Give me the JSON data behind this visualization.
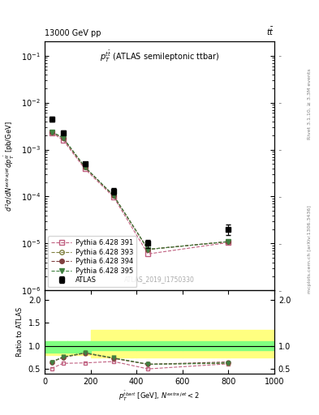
{
  "title_top": "13000 GeV pp",
  "title_right": "tt̅",
  "plot_title": "$p_T^{t\\bar{t}}$ (ATLAS semileptonic ttbar)",
  "watermark": "ATLAS_2019_I1750330",
  "rivet_label": "Rivet 3.1.10, ≥ 3.3M events",
  "arxiv_label": "mcplots.cern.ch [arXiv:1306.3436]",
  "xlabel": "$p_T^{\\bar{t}bar{t}}$ [GeV], $N^{extra jet} < 2$",
  "ylabel": "$d^2\\sigma / d N^{extra jet} d p_T^{t\\bar{t}}$ [pb/GeV]",
  "ratio_ylabel": "Ratio to ATLAS",
  "atlas_x": [
    30,
    80,
    175,
    300,
    450,
    800
  ],
  "atlas_y": [
    0.0045,
    0.0023,
    0.0005,
    0.00013,
    1e-05,
    2e-05
  ],
  "atlas_yerr": [
    0.0005,
    0.0002,
    5e-05,
    2e-05,
    2e-06,
    5e-06
  ],
  "py391_x": [
    30,
    80,
    175,
    300,
    450,
    800
  ],
  "py391_y": [
    0.0023,
    0.0016,
    0.00039,
    9.8e-05,
    6e-06,
    1.05e-05
  ],
  "py391_color": "#c06080",
  "py391_label": "Pythia 6.428 391",
  "py393_x": [
    30,
    80,
    175,
    300,
    450,
    800
  ],
  "py393_y": [
    0.0024,
    0.00175,
    0.00042,
    0.000105,
    7.5e-06,
    1.1e-05
  ],
  "py393_color": "#808040",
  "py393_label": "Pythia 6.428 393",
  "py394_x": [
    30,
    80,
    175,
    300,
    450,
    800
  ],
  "py394_y": [
    0.0024,
    0.00175,
    0.00042,
    0.000105,
    7.5e-06,
    1.1e-05
  ],
  "py394_color": "#804040",
  "py394_label": "Pythia 6.428 394",
  "py395_x": [
    30,
    80,
    175,
    300,
    450,
    800
  ],
  "py395_y": [
    0.0024,
    0.0018,
    0.00043,
    0.000105,
    7.5e-06,
    1.1e-05
  ],
  "py395_color": "#408040",
  "py395_label": "Pythia 6.428 395",
  "ratio_py391": [
    0.51,
    0.62,
    0.63,
    0.66,
    0.5,
    0.61
  ],
  "ratio_py393": [
    0.65,
    0.75,
    0.85,
    0.73,
    0.6,
    0.62
  ],
  "ratio_py394": [
    0.65,
    0.75,
    0.84,
    0.73,
    0.6,
    0.65
  ],
  "ratio_py395": [
    0.65,
    0.76,
    0.85,
    0.74,
    0.6,
    0.63
  ],
  "band_x_edges": [
    0,
    100,
    200,
    400,
    600,
    1000
  ],
  "band_green_lo": [
    0.85,
    0.85,
    0.9,
    0.9,
    0.9,
    0.9
  ],
  "band_green_hi": [
    1.1,
    1.1,
    1.1,
    1.1,
    1.1,
    1.1
  ],
  "band_yellow_lo": [
    0.8,
    0.8,
    0.75,
    0.75,
    0.75,
    0.75
  ],
  "band_yellow_hi": [
    1.1,
    1.1,
    1.35,
    1.35,
    1.35,
    1.35
  ],
  "ylim_main": [
    1e-06,
    0.2
  ],
  "ylim_ratio": [
    0.4,
    2.2
  ],
  "xlim": [
    0,
    1000
  ]
}
